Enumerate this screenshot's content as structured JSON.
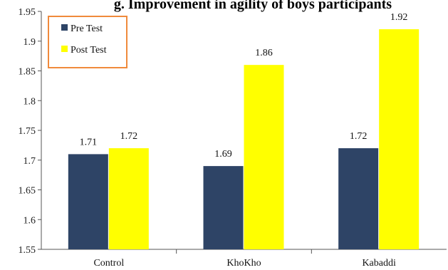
{
  "chart_data": {
    "type": "bar",
    "title": "g. Improvement in agility of boys participants",
    "categories": [
      "Control",
      "KhoKho",
      "Kabaddi"
    ],
    "series": [
      {
        "name": "Pre Test",
        "color": "#2e4466",
        "values": [
          1.71,
          1.69,
          1.72
        ],
        "labels": [
          "1.71",
          "1.69",
          "1.72"
        ]
      },
      {
        "name": "Post Test",
        "color": "#ffff00",
        "values": [
          1.72,
          1.86,
          1.92
        ],
        "labels": [
          "1.72",
          "1.86",
          "1.92"
        ]
      }
    ],
    "ylim": [
      1.55,
      1.95
    ],
    "yticks": [
      "1.55",
      "1.6",
      "1.65",
      "1.7",
      "1.75",
      "1.8",
      "1.85",
      "1.9",
      "1.95"
    ],
    "grid": false,
    "legend_position": "top-left",
    "legend_border_color": "#f08a3c"
  }
}
